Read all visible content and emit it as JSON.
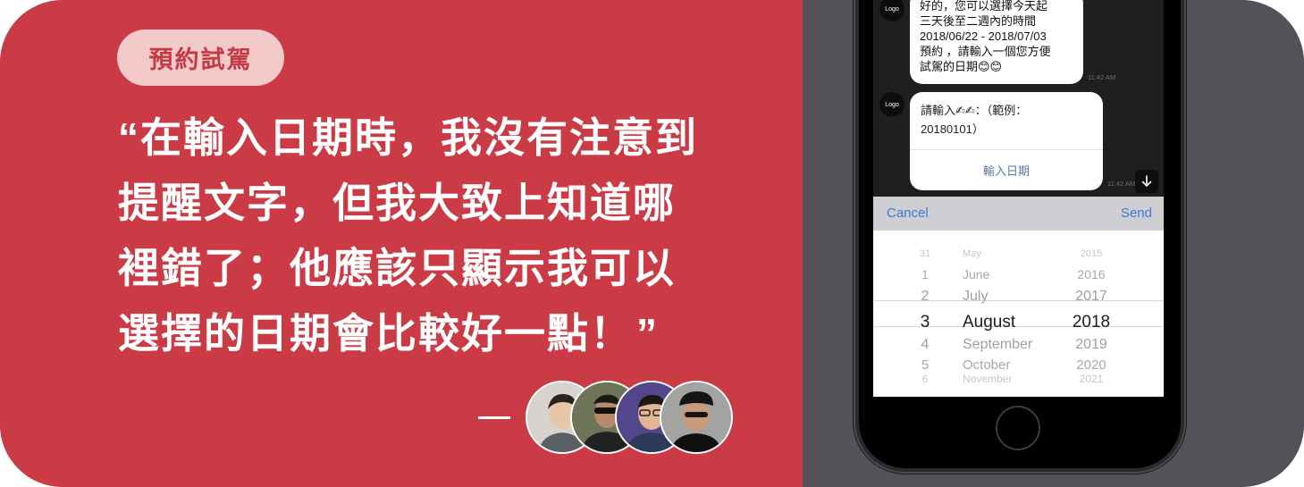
{
  "tag": "預約試駕",
  "quote": {
    "open_mark": "“",
    "close_mark": "”",
    "lines": [
      "在輸入日期時，我沒有注意到",
      "提醒文字，但我大致上知道哪",
      "裡錯了；他應該只顯示我可以",
      "選擇的日期會比較好一點！"
    ]
  },
  "attribution_dash": "—",
  "colors": {
    "left_bg": "#ca3b46",
    "right_bg": "#555159",
    "pill_bg": "#f3c9c9",
    "accent_blue": "#3a79d6"
  },
  "chat": {
    "avatar_label": "Logo",
    "msg1": {
      "lines": [
        "好的，您可以選擇今天起",
        "三天後至二週內的時間",
        "2018/06/22 - 2018/07/03",
        "預約 ，請輸入一個您方便",
        "試駕的日期😊😊"
      ],
      "time": "11:42 AM"
    },
    "msg2": {
      "lines": [
        "請輸入✍✍：（範例：",
        "20180101）"
      ],
      "button": "輸入日期",
      "time": "11:42 AM"
    },
    "scroll_icon": "arrow-down-icon"
  },
  "picker": {
    "cancel": "Cancel",
    "send": "Send",
    "rows": [
      {
        "day": "31",
        "month": "May",
        "year": "2015"
      },
      {
        "day": "1",
        "month": "June",
        "year": "2016"
      },
      {
        "day": "2",
        "month": "July",
        "year": "2017"
      },
      {
        "day": "3",
        "month": "August",
        "year": "2018"
      },
      {
        "day": "4",
        "month": "September",
        "year": "2019"
      },
      {
        "day": "5",
        "month": "October",
        "year": "2020"
      },
      {
        "day": "6",
        "month": "November",
        "year": "2021"
      }
    ],
    "selected_index": 3
  }
}
